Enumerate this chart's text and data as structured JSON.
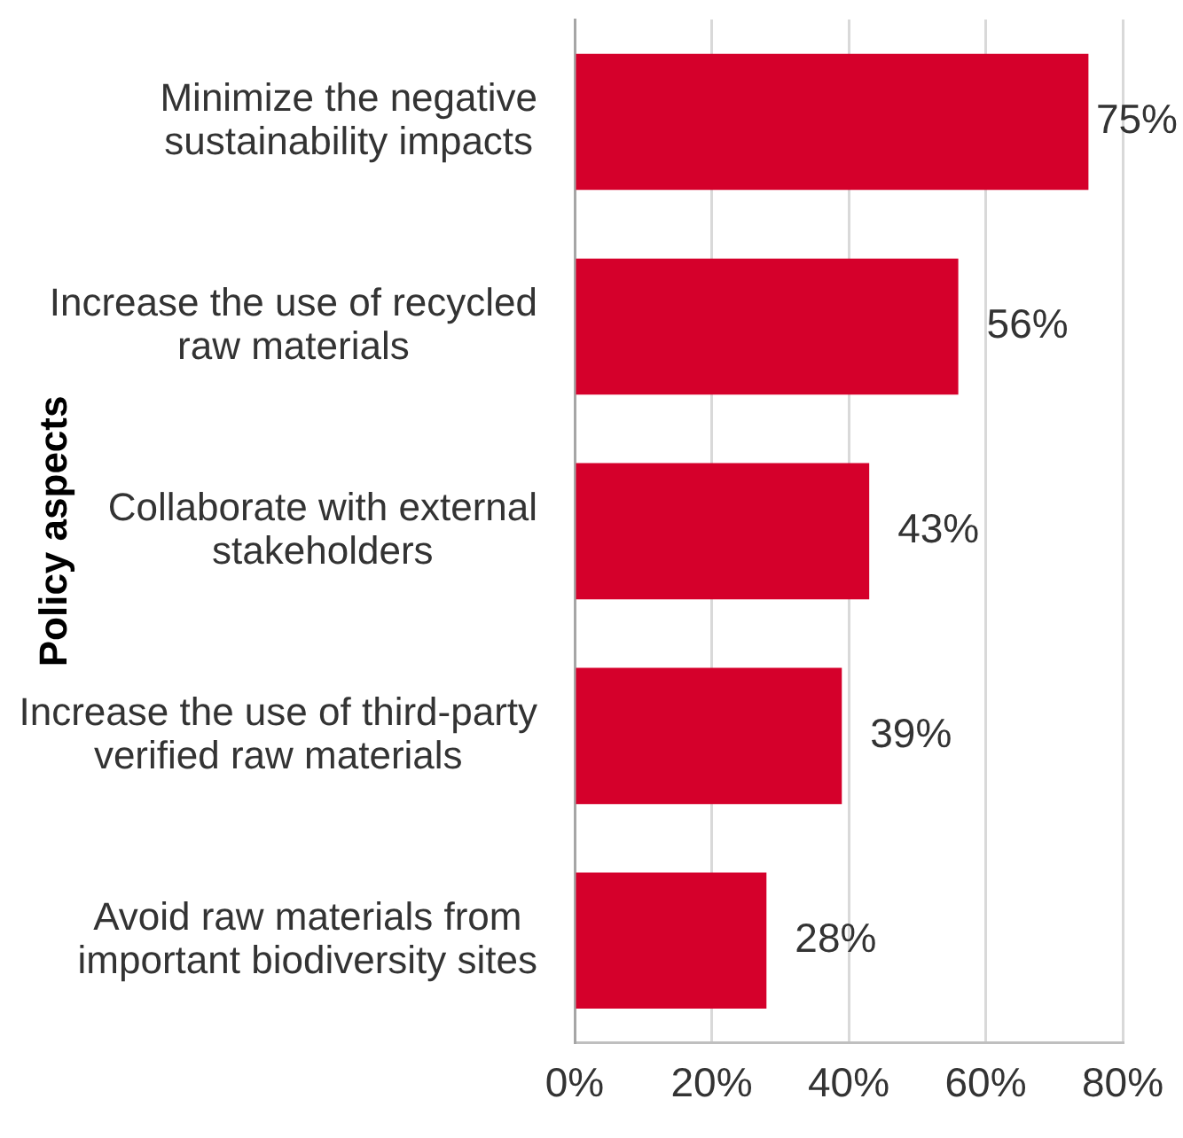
{
  "chart_data": {
    "type": "bar",
    "orientation": "horizontal",
    "ylabel": "Policy aspects",
    "categories": [
      "Minimize the negative sustainability impacts",
      "Increase the use of recycled raw materials",
      "Collaborate with external stakeholders",
      "Increase the use of third-party verified raw materials",
      "Avoid raw materials from important biodiversity sites"
    ],
    "values": [
      75,
      56,
      43,
      39,
      28
    ],
    "color": "#d5002b",
    "value_labels": [
      "75%",
      "56%",
      "43%",
      "39%",
      "28%"
    ],
    "xlim": [
      0,
      80
    ],
    "xticks": [
      {
        "value": 0,
        "label": "0%"
      },
      {
        "value": 20,
        "label": "20%"
      },
      {
        "value": 40,
        "label": "40%"
      },
      {
        "value": 60,
        "label": "60%"
      },
      {
        "value": 80,
        "label": "80%"
      }
    ],
    "grid": "x"
  }
}
